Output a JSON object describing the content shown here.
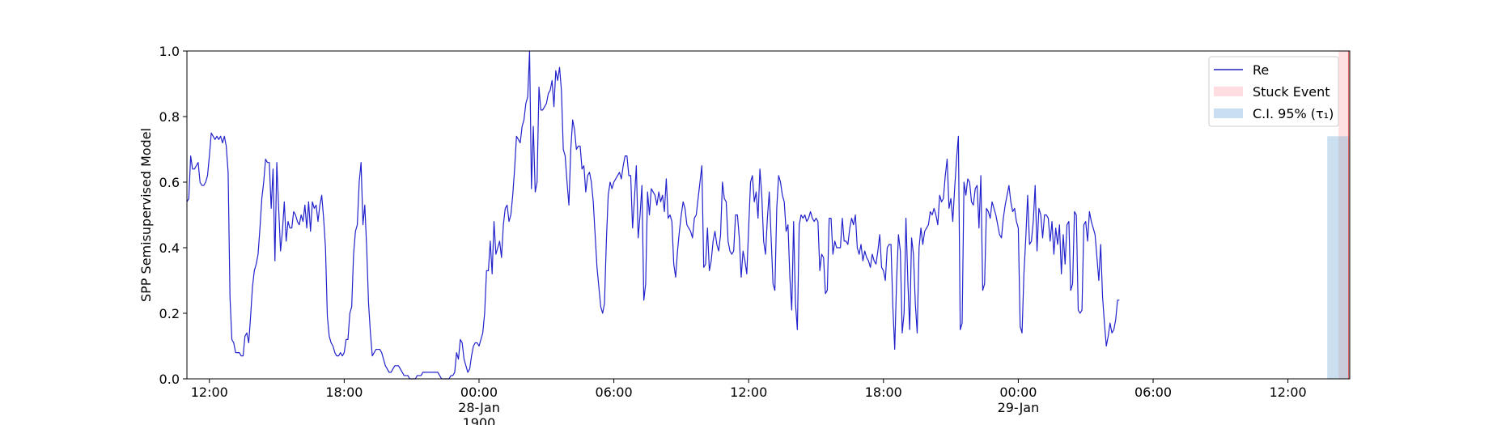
{
  "chart_data": {
    "type": "line",
    "ylabel": "SPP Semisupervised Model",
    "ylim": [
      0.0,
      1.0
    ],
    "xlim": [
      "1900-01-27 11:00",
      "1900-01-29 14:45"
    ],
    "grid": false,
    "legend_position": "top-right",
    "y_ticks": [
      {
        "value": 0.0,
        "label": "0.0"
      },
      {
        "value": 0.2,
        "label": "0.2"
      },
      {
        "value": 0.4,
        "label": "0.4"
      },
      {
        "value": 0.6,
        "label": "0.6"
      },
      {
        "value": 0.8,
        "label": "0.8"
      },
      {
        "value": 1.0,
        "label": "1.0"
      }
    ],
    "x_ticks": [
      {
        "time": "1900-01-27 12:00",
        "label": "12:00",
        "sub": []
      },
      {
        "time": "1900-01-27 18:00",
        "label": "18:00",
        "sub": []
      },
      {
        "time": "1900-01-28 00:00",
        "label": "00:00",
        "sub": [
          "28-Jan",
          "1900"
        ]
      },
      {
        "time": "1900-01-28 06:00",
        "label": "06:00",
        "sub": []
      },
      {
        "time": "1900-01-28 12:00",
        "label": "12:00",
        "sub": []
      },
      {
        "time": "1900-01-28 18:00",
        "label": "18:00",
        "sub": []
      },
      {
        "time": "1900-01-29 00:00",
        "label": "00:00",
        "sub": [
          "29-Jan"
        ]
      },
      {
        "time": "1900-01-29 06:00",
        "label": "06:00",
        "sub": []
      },
      {
        "time": "1900-01-29 12:00",
        "label": "12:00",
        "sub": []
      }
    ],
    "series": [
      {
        "name": "Re",
        "color": "#2222cc",
        "start": "1900-01-27 11:00",
        "step_minutes": 5,
        "values": [
          0.54,
          0.55,
          0.68,
          0.64,
          0.64,
          0.65,
          0.66,
          0.6,
          0.59,
          0.59,
          0.6,
          0.62,
          0.68,
          0.75,
          0.74,
          0.73,
          0.74,
          0.73,
          0.74,
          0.72,
          0.74,
          0.71,
          0.63,
          0.25,
          0.12,
          0.11,
          0.08,
          0.08,
          0.08,
          0.07,
          0.07,
          0.13,
          0.14,
          0.11,
          0.19,
          0.28,
          0.33,
          0.35,
          0.38,
          0.46,
          0.55,
          0.6,
          0.67,
          0.66,
          0.66,
          0.52,
          0.64,
          0.36,
          0.66,
          0.52,
          0.39,
          0.45,
          0.54,
          0.42,
          0.48,
          0.46,
          0.46,
          0.51,
          0.5,
          0.48,
          0.47,
          0.5,
          0.48,
          0.53,
          0.46,
          0.54,
          0.45,
          0.54,
          0.52,
          0.53,
          0.48,
          0.53,
          0.56,
          0.49,
          0.4,
          0.19,
          0.13,
          0.11,
          0.1,
          0.08,
          0.07,
          0.07,
          0.08,
          0.07,
          0.08,
          0.12,
          0.12,
          0.2,
          0.22,
          0.38,
          0.45,
          0.47,
          0.6,
          0.66,
          0.47,
          0.53,
          0.4,
          0.23,
          0.14,
          0.07,
          0.08,
          0.09,
          0.09,
          0.09,
          0.08,
          0.06,
          0.04,
          0.03,
          0.02,
          0.02,
          0.03,
          0.04,
          0.04,
          0.04,
          0.03,
          0.02,
          0.01,
          0.01,
          0.01,
          0.0,
          0.0,
          0.0,
          0.0,
          0.01,
          0.01,
          0.01,
          0.02,
          0.02,
          0.02,
          0.02,
          0.02,
          0.02,
          0.02,
          0.02,
          0.02,
          0.01,
          0.0,
          0.0,
          0.0,
          0.0,
          0.0,
          0.01,
          0.01,
          0.02,
          0.08,
          0.06,
          0.12,
          0.11,
          0.06,
          0.04,
          0.02,
          0.03,
          0.07,
          0.1,
          0.11,
          0.11,
          0.1,
          0.12,
          0.14,
          0.2,
          0.33,
          0.33,
          0.42,
          0.32,
          0.48,
          0.38,
          0.4,
          0.42,
          0.37,
          0.47,
          0.52,
          0.53,
          0.48,
          0.5,
          0.56,
          0.64,
          0.74,
          0.73,
          0.72,
          0.77,
          0.79,
          0.84,
          0.86,
          1.0,
          0.58,
          0.77,
          0.57,
          0.6,
          0.89,
          0.82,
          0.82,
          0.83,
          0.84,
          0.87,
          0.88,
          0.91,
          0.83,
          0.94,
          0.91,
          0.95,
          0.88,
          0.7,
          0.68,
          0.6,
          0.53,
          0.7,
          0.79,
          0.76,
          0.7,
          0.71,
          0.71,
          0.64,
          0.65,
          0.57,
          0.62,
          0.63,
          0.6,
          0.54,
          0.44,
          0.34,
          0.28,
          0.22,
          0.2,
          0.23,
          0.42,
          0.56,
          0.6,
          0.58,
          0.6,
          0.61,
          0.62,
          0.63,
          0.61,
          0.65,
          0.68,
          0.68,
          0.62,
          0.62,
          0.46,
          0.55,
          0.65,
          0.43,
          0.5,
          0.59,
          0.24,
          0.29,
          0.57,
          0.5,
          0.58,
          0.57,
          0.56,
          0.53,
          0.57,
          0.54,
          0.56,
          0.51,
          0.61,
          0.49,
          0.5,
          0.48,
          0.35,
          0.31,
          0.39,
          0.45,
          0.5,
          0.54,
          0.52,
          0.47,
          0.46,
          0.45,
          0.43,
          0.49,
          0.5,
          0.55,
          0.6,
          0.65,
          0.34,
          0.35,
          0.46,
          0.33,
          0.36,
          0.42,
          0.45,
          0.41,
          0.39,
          0.44,
          0.6,
          0.55,
          0.54,
          0.42,
          0.39,
          0.38,
          0.39,
          0.5,
          0.5,
          0.43,
          0.31,
          0.39,
          0.36,
          0.32,
          0.46,
          0.6,
          0.62,
          0.54,
          0.57,
          0.49,
          0.64,
          0.56,
          0.42,
          0.38,
          0.49,
          0.57,
          0.43,
          0.29,
          0.27,
          0.52,
          0.62,
          0.6,
          0.56,
          0.54,
          0.45,
          0.47,
          0.31,
          0.21,
          0.48,
          0.23,
          0.15,
          0.47,
          0.5,
          0.49,
          0.5,
          0.48,
          0.49,
          0.51,
          0.49,
          0.48,
          0.49,
          0.48,
          0.33,
          0.38,
          0.37,
          0.26,
          0.27,
          0.49,
          0.49,
          0.38,
          0.42,
          0.4,
          0.4,
          0.4,
          0.49,
          0.42,
          0.42,
          0.41,
          0.46,
          0.49,
          0.47,
          0.5,
          0.4,
          0.38,
          0.41,
          0.36,
          0.39,
          0.37,
          0.36,
          0.34,
          0.38,
          0.36,
          0.35,
          0.39,
          0.44,
          0.34,
          0.33,
          0.3,
          0.4,
          0.41,
          0.41,
          0.22,
          0.09,
          0.3,
          0.44,
          0.39,
          0.14,
          0.2,
          0.49,
          0.3,
          0.15,
          0.43,
          0.38,
          0.23,
          0.14,
          0.4,
          0.46,
          0.41,
          0.45,
          0.46,
          0.47,
          0.51,
          0.5,
          0.52,
          0.5,
          0.47,
          0.56,
          0.54,
          0.55,
          0.62,
          0.67,
          0.52,
          0.55,
          0.48,
          0.58,
          0.67,
          0.74,
          0.15,
          0.17,
          0.6,
          0.56,
          0.61,
          0.6,
          0.54,
          0.53,
          0.58,
          0.59,
          0.46,
          0.62,
          0.27,
          0.29,
          0.52,
          0.51,
          0.49,
          0.54,
          0.52,
          0.5,
          0.47,
          0.44,
          0.43,
          0.49,
          0.53,
          0.56,
          0.59,
          0.54,
          0.51,
          0.52,
          0.48,
          0.46,
          0.16,
          0.14,
          0.32,
          0.43,
          0.56,
          0.41,
          0.42,
          0.48,
          0.59,
          0.39,
          0.52,
          0.5,
          0.43,
          0.5,
          0.5,
          0.49,
          0.42,
          0.48,
          0.38,
          0.46,
          0.41,
          0.47,
          0.32,
          0.44,
          0.35,
          0.47,
          0.48,
          0.27,
          0.29,
          0.51,
          0.5,
          0.21,
          0.2,
          0.21,
          0.47,
          0.48,
          0.42,
          0.51,
          0.48,
          0.46,
          0.44,
          0.37,
          0.3,
          0.41,
          0.25,
          0.17,
          0.1,
          0.13,
          0.17,
          0.14,
          0.15,
          0.18,
          0.24,
          0.24
        ]
      }
    ],
    "shaded_regions": [
      {
        "name": "Stuck Event",
        "start": "1900-01-29 14:15",
        "end": "1900-01-29 14:45",
        "ymin": 0.0,
        "ymax": 1.0,
        "color": "#ff9999",
        "alpha": 0.3
      },
      {
        "name": "C.I. 95% (τ₁)",
        "start": "1900-01-29 13:45",
        "end": "1900-01-29 14:45",
        "ymin": 0.0,
        "ymax": 0.74,
        "color": "#7aaed6",
        "alpha": 0.4
      }
    ],
    "stuck_event_line": {
      "time": "1900-01-29 14:42",
      "color": "#e05555"
    },
    "legend": [
      {
        "label": "Re",
        "kind": "line",
        "color": "#2222cc"
      },
      {
        "label": "Stuck Event",
        "kind": "patch",
        "color": "#ffdde1"
      },
      {
        "label": "C.I. 95% (τ₁)",
        "kind": "patch",
        "color": "#c9def0"
      }
    ]
  }
}
